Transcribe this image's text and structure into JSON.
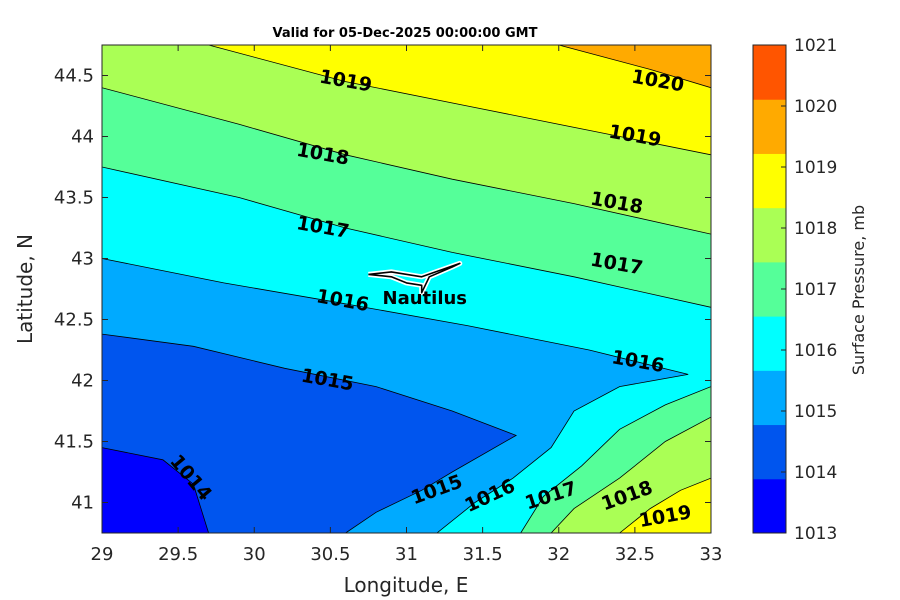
{
  "chart_data": {
    "type": "contour",
    "title": "Valid for 05-Dec-2025 00:00:00 GMT",
    "xlabel": "Longitude, E",
    "ylabel": "Latitude, N",
    "xlim": [
      29,
      33
    ],
    "ylim": [
      40.75,
      44.75
    ],
    "xticks": [
      "29",
      "29.5",
      "30",
      "30.5",
      "31",
      "31.5",
      "32",
      "32.5",
      "33"
    ],
    "yticks": [
      "41",
      "41.5",
      "42",
      "42.5",
      "43",
      "43.5",
      "44",
      "44.5"
    ],
    "colorbar": {
      "label": "Surface Pressure, mb",
      "levels": [
        "1013",
        "1014",
        "1015",
        "1016",
        "1017",
        "1018",
        "1019",
        "1020",
        "1021"
      ],
      "colors": [
        "#0000ff",
        "#0055ee",
        "#00aaff",
        "#00ffff",
        "#55ff99",
        "#aaff55",
        "#ffff00",
        "#ffaa00",
        "#ff5500"
      ]
    },
    "contours": [
      {
        "level": 1014,
        "color": "#0055ee",
        "points": [
          [
            29,
            41.45
          ],
          [
            29.4,
            41.35
          ],
          [
            29.6,
            41.15
          ],
          [
            29.7,
            40.75
          ]
        ]
      },
      {
        "level": 1015,
        "color": "#00aaff",
        "points": [
          [
            29,
            42.38
          ],
          [
            29.6,
            42.28
          ],
          [
            30.2,
            42.1
          ],
          [
            30.8,
            41.95
          ],
          [
            31.3,
            41.75
          ],
          [
            31.72,
            41.55
          ],
          [
            31.3,
            41.25
          ],
          [
            31.1,
            41.1
          ],
          [
            30.8,
            40.92
          ],
          [
            30.6,
            40.75
          ]
        ]
      },
      {
        "level": 1016,
        "color": "#00ffff",
        "points": [
          [
            29,
            43.0
          ],
          [
            29.8,
            42.8
          ],
          [
            30.5,
            42.65
          ],
          [
            31.4,
            42.45
          ],
          [
            32.2,
            42.25
          ],
          [
            32.85,
            42.05
          ],
          [
            32.4,
            41.95
          ],
          [
            32.1,
            41.75
          ],
          [
            31.95,
            41.45
          ],
          [
            31.7,
            41.2
          ],
          [
            31.45,
            41.0
          ],
          [
            31.2,
            40.75
          ]
        ]
      },
      {
        "level": 1017,
        "color": "#55ff99",
        "points": [
          [
            29,
            43.75
          ],
          [
            29.9,
            43.5
          ],
          [
            30.6,
            43.25
          ],
          [
            31.3,
            43.05
          ],
          [
            32.1,
            42.85
          ],
          [
            33,
            42.6
          ]
        ]
      },
      {
        "level": 1017,
        "color": "#55ff99",
        "points": [
          [
            33,
            41.95
          ],
          [
            32.7,
            41.8
          ],
          [
            32.4,
            41.6
          ],
          [
            32.15,
            41.3
          ],
          [
            31.9,
            41.05
          ],
          [
            31.75,
            40.75
          ]
        ]
      },
      {
        "level": 1018,
        "color": "#aaff55",
        "points": [
          [
            29,
            44.4
          ],
          [
            29.9,
            44.1
          ],
          [
            30.6,
            43.85
          ],
          [
            31.3,
            43.65
          ],
          [
            32.1,
            43.45
          ],
          [
            33,
            43.2
          ]
        ]
      },
      {
        "level": 1018,
        "color": "#aaff55",
        "points": [
          [
            33,
            41.7
          ],
          [
            32.7,
            41.5
          ],
          [
            32.4,
            41.2
          ],
          [
            32.1,
            40.95
          ],
          [
            31.95,
            40.75
          ]
        ]
      },
      {
        "level": 1019,
        "color": "#ffff00",
        "points": [
          [
            29.7,
            44.75
          ],
          [
            30.6,
            44.45
          ],
          [
            31.4,
            44.25
          ],
          [
            32.2,
            44.05
          ],
          [
            33,
            43.85
          ]
        ]
      },
      {
        "level": 1019,
        "color": "#ffff00",
        "points": [
          [
            33,
            41.2
          ],
          [
            32.8,
            41.1
          ],
          [
            32.6,
            40.95
          ],
          [
            32.4,
            40.75
          ]
        ]
      },
      {
        "level": 1020,
        "color": "#ffaa00",
        "points": [
          [
            32.0,
            44.75
          ],
          [
            32.6,
            44.55
          ],
          [
            33,
            44.4
          ]
        ]
      }
    ],
    "contour_labels": [
      {
        "text": "1014",
        "lon": 29.58,
        "lat": 41.2,
        "angle": 50
      },
      {
        "text": "1015",
        "lon": 30.48,
        "lat": 42.0,
        "angle": 10
      },
      {
        "text": "1016",
        "lon": 30.58,
        "lat": 42.65,
        "angle": 10
      },
      {
        "text": "1017",
        "lon": 30.45,
        "lat": 43.25,
        "angle": 10
      },
      {
        "text": "1018",
        "lon": 30.45,
        "lat": 43.85,
        "angle": 10
      },
      {
        "text": "1019",
        "lon": 30.6,
        "lat": 44.45,
        "angle": 10
      },
      {
        "text": "1020",
        "lon": 32.65,
        "lat": 44.45,
        "angle": 10
      },
      {
        "text": "1019",
        "lon": 32.5,
        "lat": 44.0,
        "angle": 10
      },
      {
        "text": "1018",
        "lon": 32.38,
        "lat": 43.45,
        "angle": 10
      },
      {
        "text": "1017",
        "lon": 32.38,
        "lat": 42.95,
        "angle": 10
      },
      {
        "text": "1016",
        "lon": 32.52,
        "lat": 42.15,
        "angle": 10
      },
      {
        "text": "1015",
        "lon": 31.2,
        "lat": 41.1,
        "angle": -20
      },
      {
        "text": "1016",
        "lon": 31.55,
        "lat": 41.05,
        "angle": -25
      },
      {
        "text": "1017",
        "lon": 31.95,
        "lat": 41.05,
        "angle": -18
      },
      {
        "text": "1018",
        "lon": 32.45,
        "lat": 41.05,
        "angle": -20
      },
      {
        "text": "1019",
        "lon": 32.7,
        "lat": 40.88,
        "angle": -10
      }
    ],
    "track": {
      "label": "Nautilus",
      "label_lon": 31.12,
      "label_lat": 42.67,
      "points": [
        [
          30.75,
          42.87
        ],
        [
          30.9,
          42.85
        ],
        [
          31.0,
          42.8
        ],
        [
          31.1,
          42.78
        ],
        [
          31.1,
          42.72
        ],
        [
          31.15,
          42.85
        ],
        [
          31.3,
          42.93
        ],
        [
          31.35,
          42.96
        ],
        [
          31.1,
          42.85
        ],
        [
          30.9,
          42.89
        ],
        [
          30.75,
          42.87
        ]
      ]
    }
  }
}
